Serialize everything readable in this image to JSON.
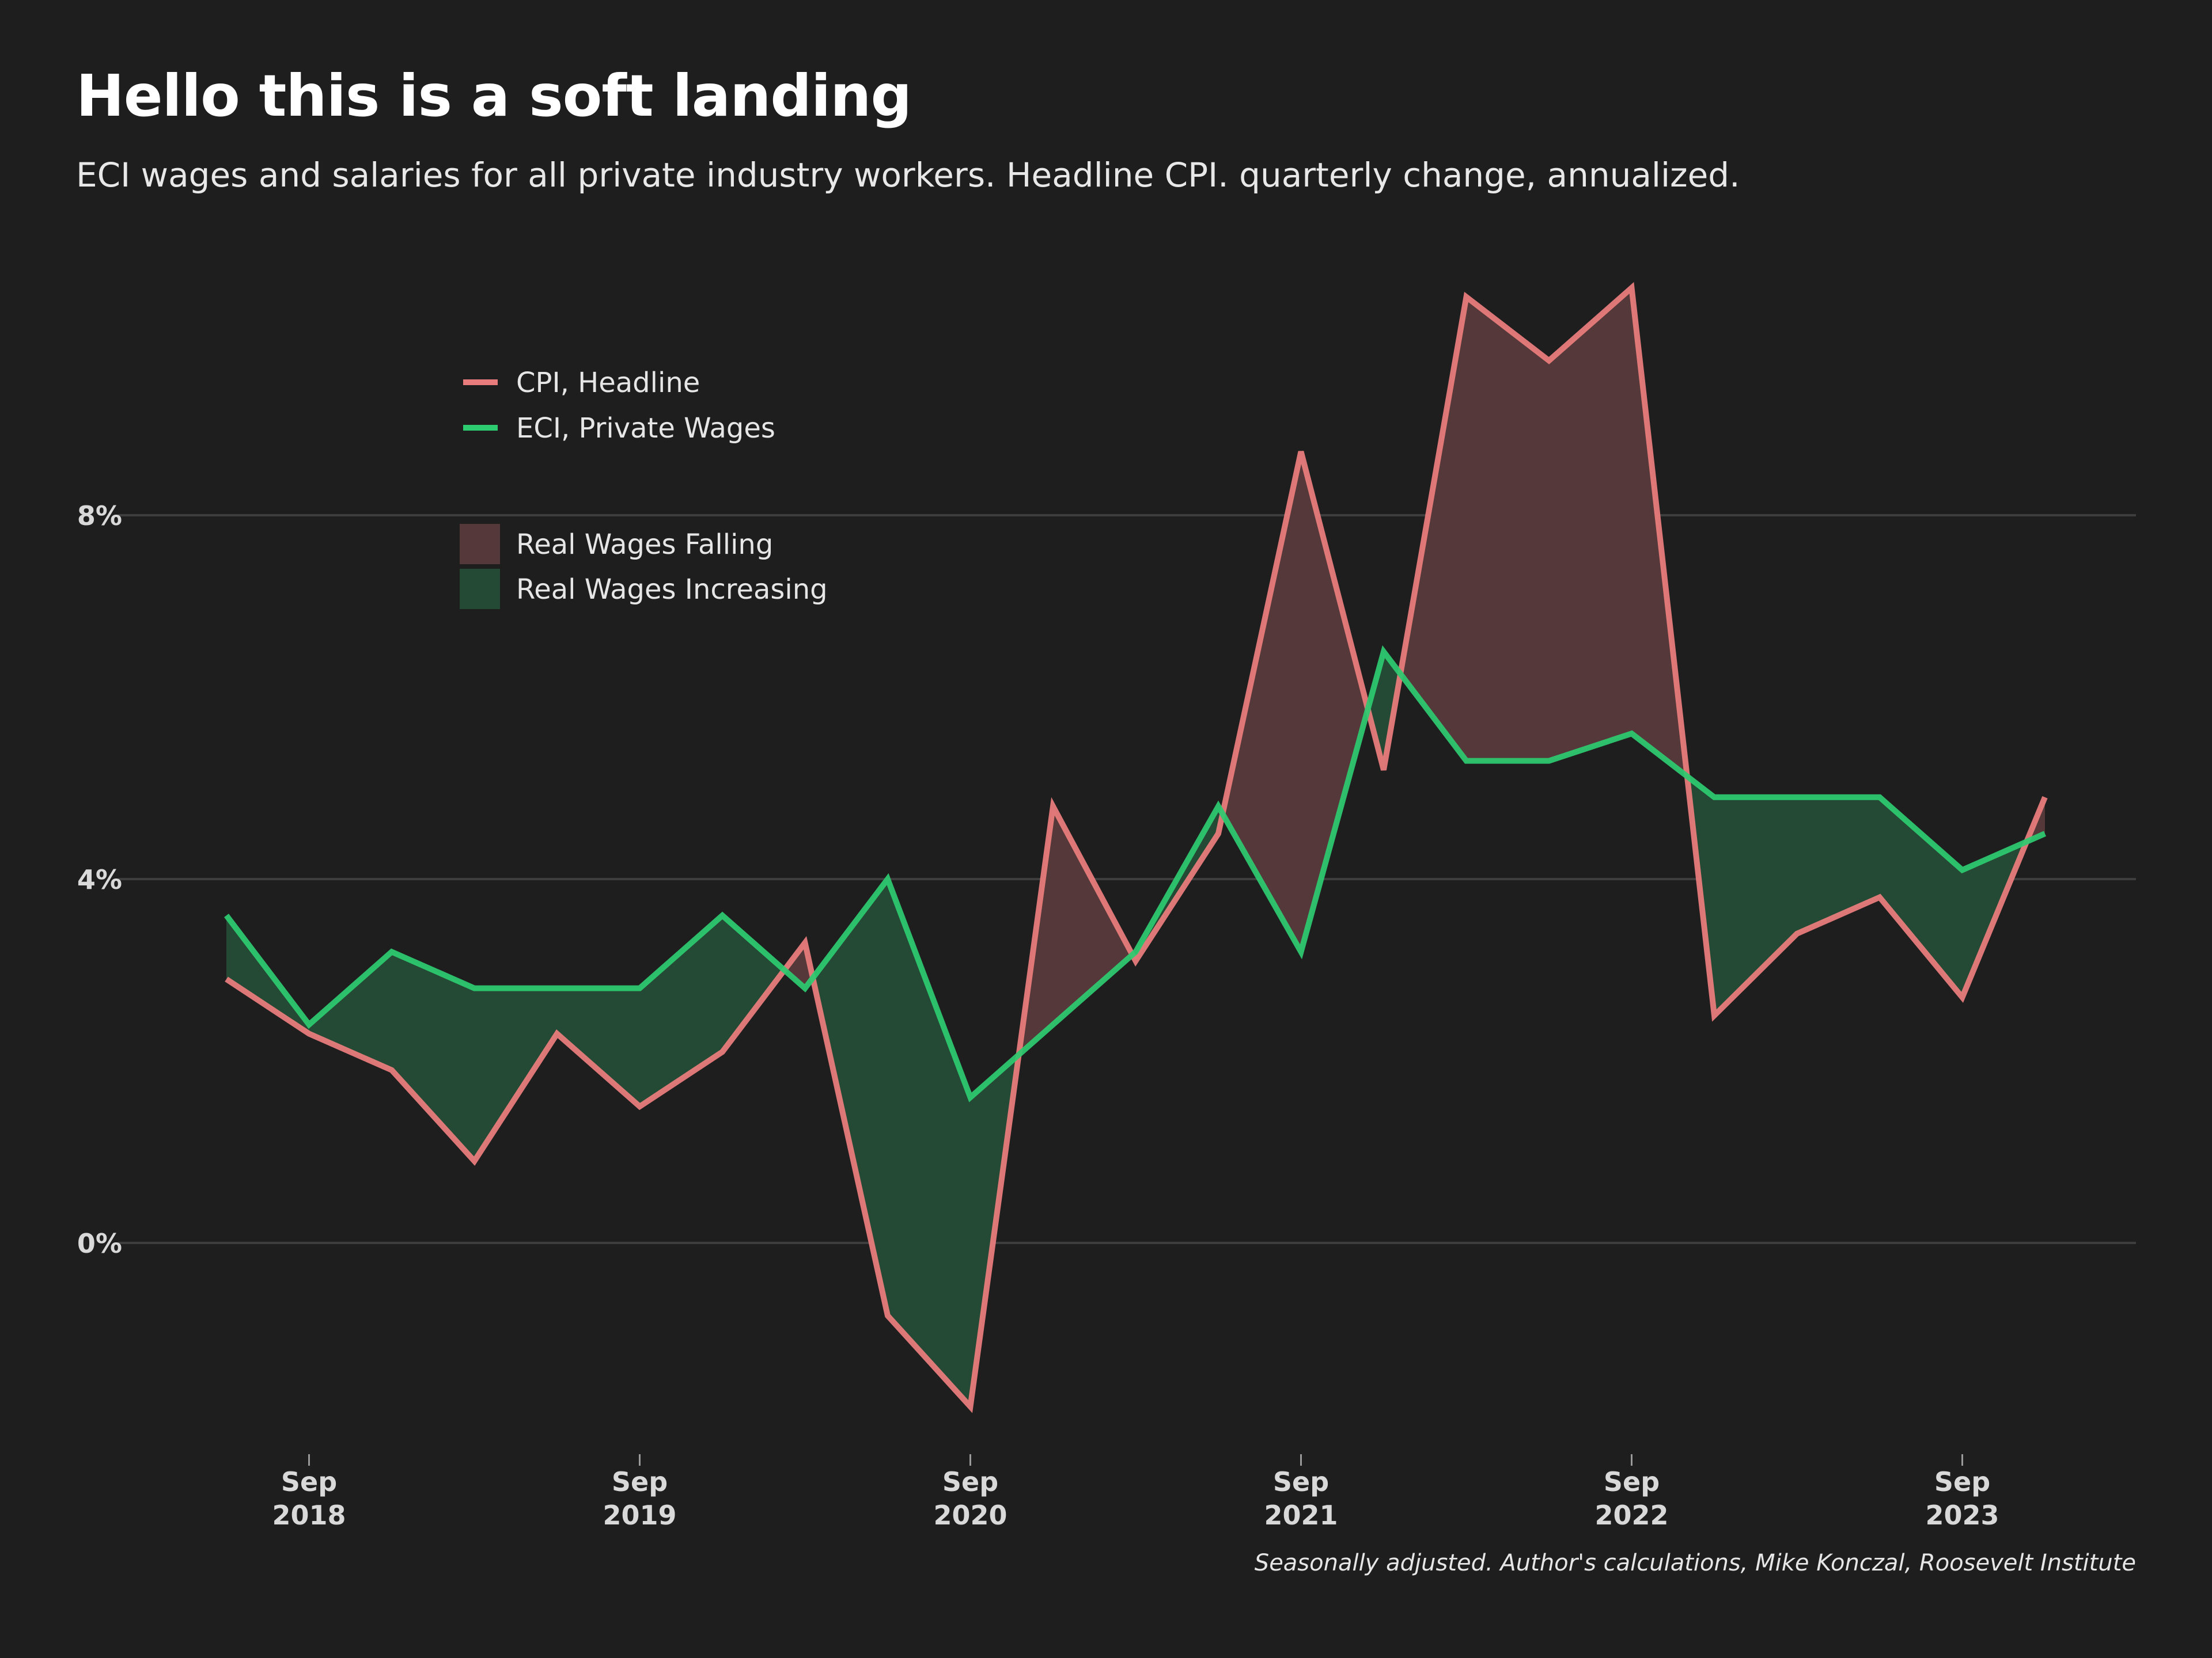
{
  "chart_data": {
    "type": "line",
    "title": "Hello this is a soft landing",
    "subtitle": "ECI wages and salaries for all private industry workers. Headline CPI. quarterly change, annualized.",
    "source": "Seasonally adjusted. Author's calculations, Mike Konczal, Roosevelt Institute",
    "x": [
      "2018-06",
      "2018-09",
      "2018-12",
      "2019-03",
      "2019-06",
      "2019-09",
      "2019-12",
      "2020-03",
      "2020-06",
      "2020-09",
      "2020-12",
      "2021-03",
      "2021-06",
      "2021-09",
      "2021-12",
      "2022-03",
      "2022-06",
      "2022-09",
      "2022-12",
      "2023-03",
      "2023-06",
      "2023-09",
      "2023-12"
    ],
    "x_ticks": [
      {
        "x": "2018-09",
        "month": "Sep",
        "year": "2018"
      },
      {
        "x": "2019-09",
        "month": "Sep",
        "year": "2019"
      },
      {
        "x": "2020-09",
        "month": "Sep",
        "year": "2020"
      },
      {
        "x": "2021-09",
        "month": "Sep",
        "year": "2021"
      },
      {
        "x": "2022-09",
        "month": "Sep",
        "year": "2022"
      },
      {
        "x": "2023-09",
        "month": "Sep",
        "year": "2023"
      }
    ],
    "y_ticks": [
      {
        "value": 0,
        "label": "0%"
      },
      {
        "value": 4,
        "label": "4%"
      },
      {
        "value": 8,
        "label": "8%"
      }
    ],
    "ylim": [
      -2.4,
      11.2
    ],
    "series": [
      {
        "name": "CPI, Headline",
        "color": "#e87b7b",
        "values": [
          2.9,
          2.3,
          1.9,
          0.9,
          2.3,
          1.5,
          2.1,
          3.3,
          -0.8,
          -1.8,
          4.8,
          3.1,
          4.5,
          8.7,
          5.2,
          10.4,
          9.7,
          10.5,
          2.5,
          3.4,
          3.8,
          2.7,
          4.9
        ]
      },
      {
        "name": "ECI, Private Wages",
        "color": "#2ecc71",
        "values": [
          3.6,
          2.4,
          3.2,
          2.8,
          2.8,
          2.8,
          3.6,
          2.8,
          4.0,
          1.6,
          2.4,
          3.2,
          4.8,
          3.2,
          6.5,
          5.3,
          5.3,
          5.6,
          4.9,
          4.9,
          4.9,
          4.1,
          4.5
        ]
      }
    ],
    "fills": [
      {
        "name": "Real Wages Falling",
        "color": "#553839"
      },
      {
        "name": "Real Wages Increasing",
        "color": "#244a35"
      }
    ],
    "legend_position": "top-left",
    "grid": true
  }
}
